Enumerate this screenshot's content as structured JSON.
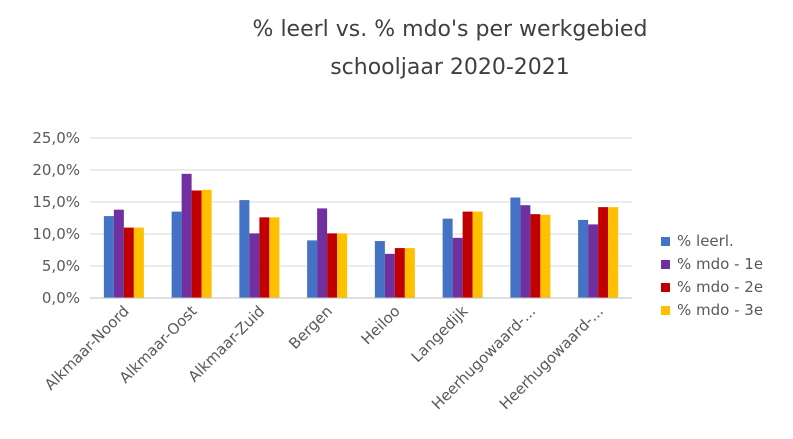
{
  "chart_data": {
    "type": "bar",
    "title_lines": [
      "% leerl vs. % mdo's per werkgebied",
      "schooljaar 2020-2021"
    ],
    "xlabel": "",
    "ylabel": "",
    "ylim": [
      0,
      25
    ],
    "y_ticks": [
      "0,0%",
      "5,0%",
      "10,0%",
      "15,0%",
      "20,0%",
      "25,0%"
    ],
    "grid": true,
    "legend_position": "right",
    "categories": [
      "Alkmaar-Noord",
      "Alkmaar-Oost",
      "Alkmaar-Zuid",
      "Bergen",
      "Heiloo",
      "Langedijk",
      "Heerhugowaard-...",
      "Heerhugowaard-..."
    ],
    "series": [
      {
        "name": "% leerl.",
        "color": "#4472c4",
        "values": [
          12.8,
          13.5,
          15.3,
          9.0,
          8.9,
          12.4,
          15.7,
          12.2
        ]
      },
      {
        "name": "% mdo - 1e",
        "color": "#7030a0",
        "values": [
          13.8,
          19.4,
          10.1,
          14.0,
          6.9,
          9.4,
          14.5,
          11.5
        ]
      },
      {
        "name": "% mdo - 2e",
        "color": "#c00000",
        "values": [
          11.0,
          16.8,
          12.6,
          10.1,
          7.8,
          13.5,
          13.1,
          14.2
        ]
      },
      {
        "name": "% mdo - 3e",
        "color": "#ffc000",
        "values": [
          11.0,
          16.9,
          12.6,
          10.1,
          7.8,
          13.5,
          13.0,
          14.2
        ]
      }
    ]
  }
}
